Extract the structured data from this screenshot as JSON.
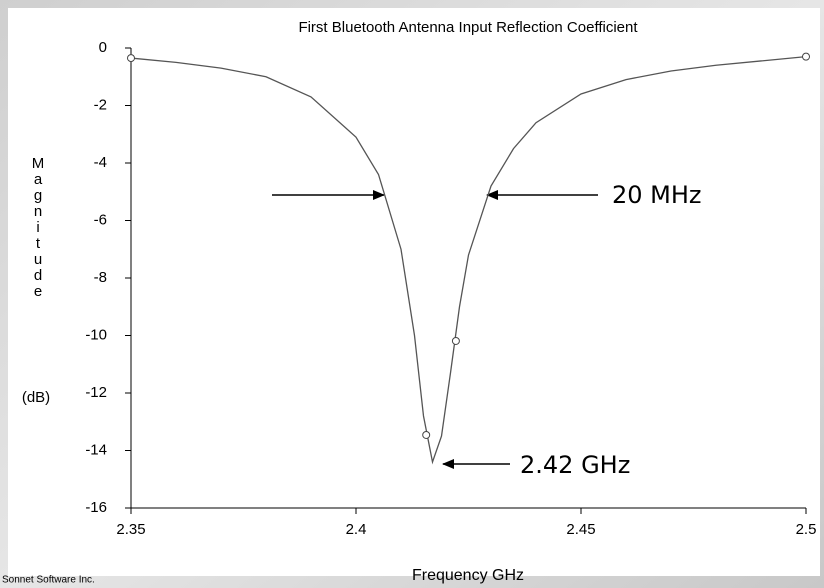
{
  "chart_data": {
    "type": "line",
    "title": "First Bluetooth Antenna Input Reflection Coefficient",
    "xlabel": "Frequency GHz",
    "ylabel": "Magnitude",
    "ylabel_unit": "(dB)",
    "credit": "Sonnet Software Inc.",
    "annotations": [
      "20 MHz",
      "2.42 GHz"
    ],
    "xlim": [
      2.35,
      2.5
    ],
    "xticks": [
      2.35,
      2.4,
      2.45,
      2.5
    ],
    "ylim": [
      -16,
      0
    ],
    "yticks": [
      0,
      -2,
      -4,
      -6,
      -8,
      -10,
      -12,
      -14,
      -16
    ],
    "series": [
      {
        "color": "#555555",
        "x": [
          2.35,
          2.36,
          2.37,
          2.38,
          2.39,
          2.4,
          2.405,
          2.41,
          2.413,
          2.415,
          2.417,
          2.419,
          2.421,
          2.423,
          2.425,
          2.43,
          2.435,
          2.44,
          2.45,
          2.46,
          2.47,
          2.48,
          2.49,
          2.5
        ],
        "y": [
          -0.35,
          -0.5,
          -0.7,
          -1.0,
          -1.7,
          -3.1,
          -4.4,
          -7.0,
          -10.0,
          -12.8,
          -14.4,
          -13.5,
          -11.3,
          -9.0,
          -7.2,
          -4.8,
          -3.5,
          -2.6,
          -1.6,
          -1.1,
          -0.8,
          -0.6,
          -0.45,
          -0.3
        ]
      }
    ],
    "points": {
      "x": [
        2.35,
        2.4156,
        2.4222,
        2.5
      ],
      "y": [
        -0.35,
        -13.46,
        -10.19,
        -0.3
      ]
    }
  }
}
